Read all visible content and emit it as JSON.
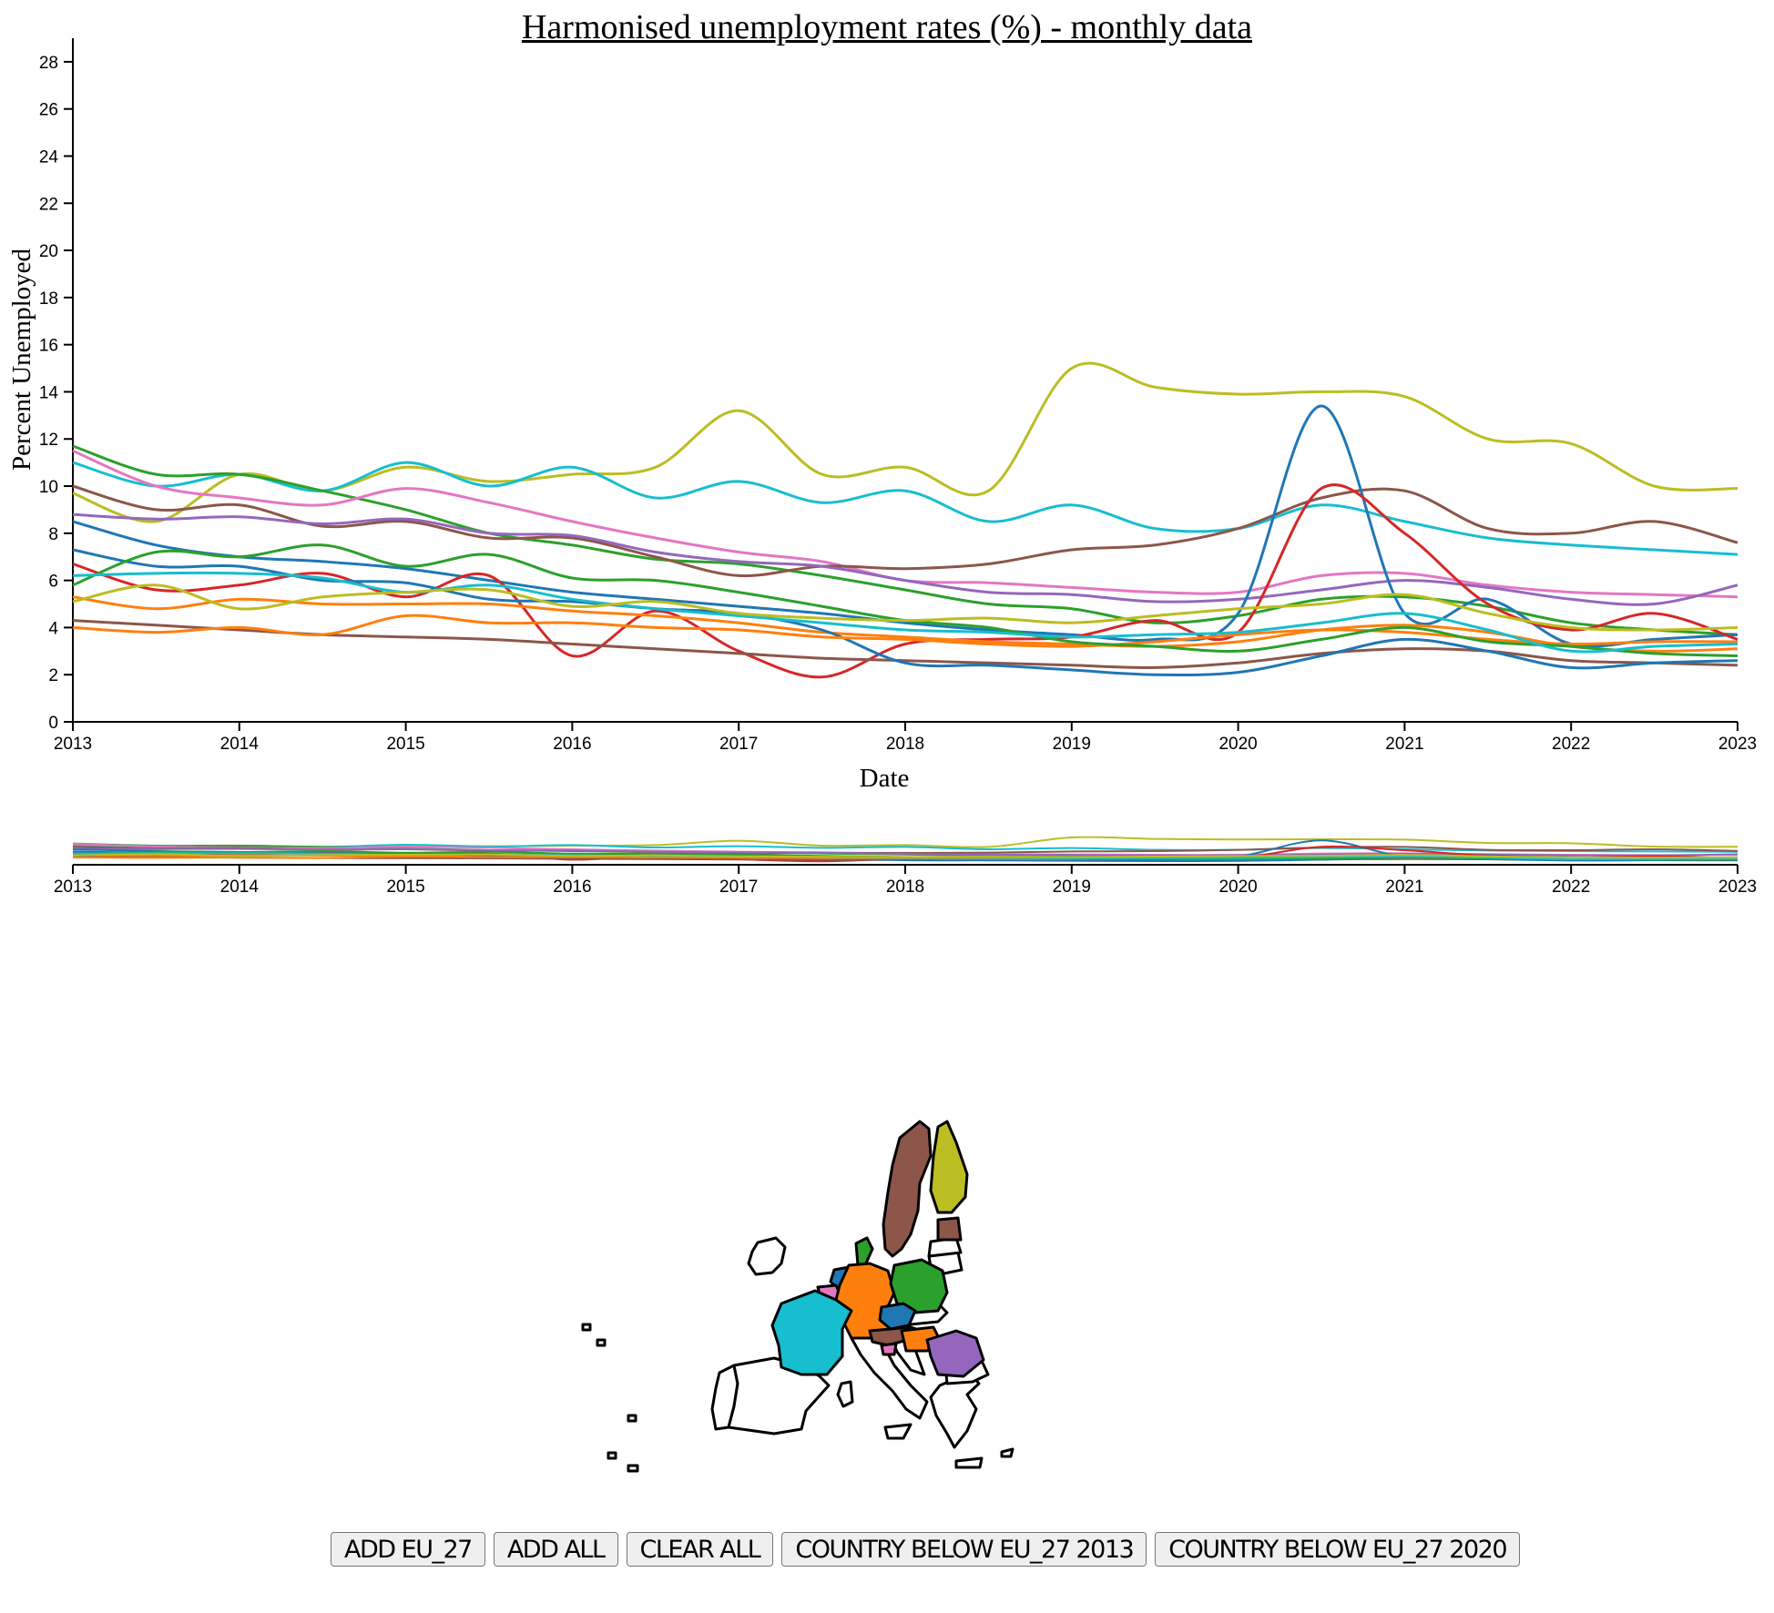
{
  "chart_data": {
    "type": "line",
    "title": "Harmonised unemployment rates (%) - monthly data",
    "xlabel": "Date",
    "ylabel": "Percent Unemployed",
    "xlim": [
      2013,
      2023
    ],
    "ylim": [
      0,
      29
    ],
    "x_ticks": [
      "2013",
      "2014",
      "2015",
      "2016",
      "2017",
      "2018",
      "2019",
      "2020",
      "2021",
      "2022",
      "2023"
    ],
    "y_ticks": [
      "0",
      "2",
      "4",
      "6",
      "8",
      "10",
      "12",
      "14",
      "16",
      "18",
      "20",
      "22",
      "24",
      "26",
      "28"
    ],
    "x": [
      2013.0,
      2013.5,
      2014.0,
      2014.5,
      2015.0,
      2015.5,
      2016.0,
      2016.5,
      2017.0,
      2017.5,
      2018.0,
      2018.5,
      2019.0,
      2019.5,
      2020.0,
      2020.5,
      2021.0,
      2021.5,
      2022.0,
      2022.5,
      2023.0
    ],
    "series": [
      {
        "color": "#bcbd22",
        "values": [
          9.7,
          8.5,
          10.5,
          9.8,
          10.8,
          10.2,
          10.5,
          10.8,
          13.2,
          10.5,
          10.8,
          9.8,
          15.0,
          14.2,
          13.9,
          14.0,
          13.8,
          12.0,
          11.8,
          10.0,
          9.9
        ]
      },
      {
        "color": "#17becf",
        "values": [
          11.0,
          10.0,
          10.5,
          9.8,
          11.0,
          10.0,
          10.8,
          9.5,
          10.2,
          9.3,
          9.8,
          8.5,
          9.2,
          8.2,
          8.2,
          9.2,
          8.5,
          7.8,
          7.5,
          7.3,
          7.1
        ]
      },
      {
        "color": "#2ca02c",
        "values": [
          11.7,
          10.5,
          10.5,
          9.8,
          9.0,
          8.0,
          7.5,
          6.9,
          6.7,
          6.2,
          5.6,
          5.0,
          4.8,
          4.2,
          4.5,
          5.2,
          5.3,
          4.9,
          4.2,
          3.9,
          3.7
        ]
      },
      {
        "color": "#e377c2",
        "values": [
          11.5,
          10.0,
          9.5,
          9.2,
          9.9,
          9.3,
          8.5,
          7.8,
          7.2,
          6.8,
          6.0,
          5.9,
          5.7,
          5.5,
          5.5,
          6.2,
          6.3,
          5.8,
          5.5,
          5.4,
          5.3
        ]
      },
      {
        "color": "#8c564b",
        "values": [
          10.0,
          9.0,
          9.2,
          8.3,
          8.5,
          7.8,
          7.8,
          7.0,
          6.2,
          6.6,
          6.5,
          6.7,
          7.3,
          7.5,
          8.2,
          9.5,
          9.8,
          8.2,
          8.0,
          8.5,
          7.6
        ]
      },
      {
        "color": "#9467bd",
        "values": [
          8.8,
          8.6,
          8.7,
          8.4,
          8.6,
          8.0,
          7.9,
          7.2,
          6.8,
          6.6,
          6.0,
          5.5,
          5.4,
          5.1,
          5.2,
          5.6,
          6.0,
          5.7,
          5.2,
          5.0,
          5.8
        ]
      },
      {
        "color": "#1f77b4",
        "values": [
          8.5,
          7.5,
          7.0,
          6.8,
          6.5,
          6.0,
          5.5,
          5.2,
          4.9,
          4.6,
          4.2,
          3.9,
          3.7,
          3.5,
          4.6,
          13.4,
          4.6,
          5.2,
          3.3,
          3.5,
          3.7
        ]
      },
      {
        "color": "#d62728",
        "values": [
          6.7,
          5.6,
          5.8,
          6.3,
          5.3,
          6.2,
          2.8,
          4.7,
          3.0,
          1.9,
          3.3,
          3.5,
          3.6,
          4.3,
          3.8,
          9.9,
          8.0,
          5.0,
          3.9,
          4.6,
          3.5
        ]
      },
      {
        "color": "#ff7f0e",
        "values": [
          5.3,
          4.8,
          5.2,
          5.0,
          5.0,
          5.0,
          4.7,
          4.5,
          4.2,
          3.8,
          3.6,
          3.4,
          3.3,
          3.2,
          3.4,
          3.9,
          4.1,
          3.8,
          3.2,
          3.0,
          3.1
        ]
      },
      {
        "color": "#8c564b",
        "values": [
          4.3,
          4.1,
          3.9,
          3.7,
          3.6,
          3.5,
          3.3,
          3.1,
          2.9,
          2.7,
          2.6,
          2.5,
          2.4,
          2.3,
          2.5,
          2.9,
          3.1,
          3.0,
          2.6,
          2.5,
          2.4
        ]
      },
      {
        "color": "#1f77b4",
        "values": [
          7.3,
          6.6,
          6.6,
          6.0,
          5.9,
          5.2,
          5.1,
          4.8,
          4.6,
          3.9,
          2.5,
          2.4,
          2.2,
          2.0,
          2.1,
          2.8,
          3.5,
          3.0,
          2.3,
          2.5,
          2.6
        ]
      },
      {
        "color": "#ff7f0e",
        "values": [
          4.0,
          3.8,
          4.0,
          3.7,
          4.5,
          4.2,
          4.2,
          4.0,
          3.9,
          3.6,
          3.5,
          3.3,
          3.2,
          3.4,
          3.7,
          3.9,
          3.8,
          3.5,
          3.3,
          3.4,
          3.4
        ]
      },
      {
        "color": "#2ca02c",
        "values": [
          5.8,
          7.2,
          7.0,
          7.5,
          6.6,
          7.1,
          6.1,
          6.0,
          5.5,
          4.9,
          4.3,
          4.0,
          3.4,
          3.2,
          3.0,
          3.5,
          4.0,
          3.4,
          3.2,
          2.9,
          2.8
        ]
      },
      {
        "color": "#17becf",
        "values": [
          6.2,
          6.3,
          6.3,
          6.1,
          5.5,
          5.8,
          5.2,
          4.8,
          4.5,
          4.2,
          3.9,
          3.8,
          3.6,
          3.7,
          3.8,
          4.2,
          4.6,
          3.9,
          3.0,
          3.2,
          3.3
        ]
      },
      {
        "color": "#bcbd22",
        "values": [
          5.1,
          5.8,
          4.8,
          5.3,
          5.5,
          5.6,
          4.9,
          5.1,
          4.6,
          4.4,
          4.3,
          4.4,
          4.2,
          4.5,
          4.8,
          5.0,
          5.4,
          4.6,
          4.0,
          3.9,
          4.0
        ]
      }
    ]
  },
  "map": {
    "colors": {
      "finland": "#bcbd22",
      "sweden": "#8c564b",
      "estonia": "#8c564b",
      "denmark": "#2ca02c",
      "netherlands": "#1f77b4",
      "belgium": "#e377c2",
      "germany": "#ff7f0e",
      "poland": "#2ca02c",
      "czechia": "#1f77b4",
      "austria": "#8c564b",
      "hungary": "#ff7f0e",
      "romania": "#9467bd",
      "france": "#17becf",
      "slovenia": "#e377c2"
    }
  },
  "controls": {
    "add_eu27": "ADD EU_27",
    "add_all": "ADD ALL",
    "clear_all": "CLEAR ALL",
    "below_2013": "COUNTRY BELOW EU_27 2013",
    "below_2020": "COUNTRY BELOW EU_27 2020"
  }
}
